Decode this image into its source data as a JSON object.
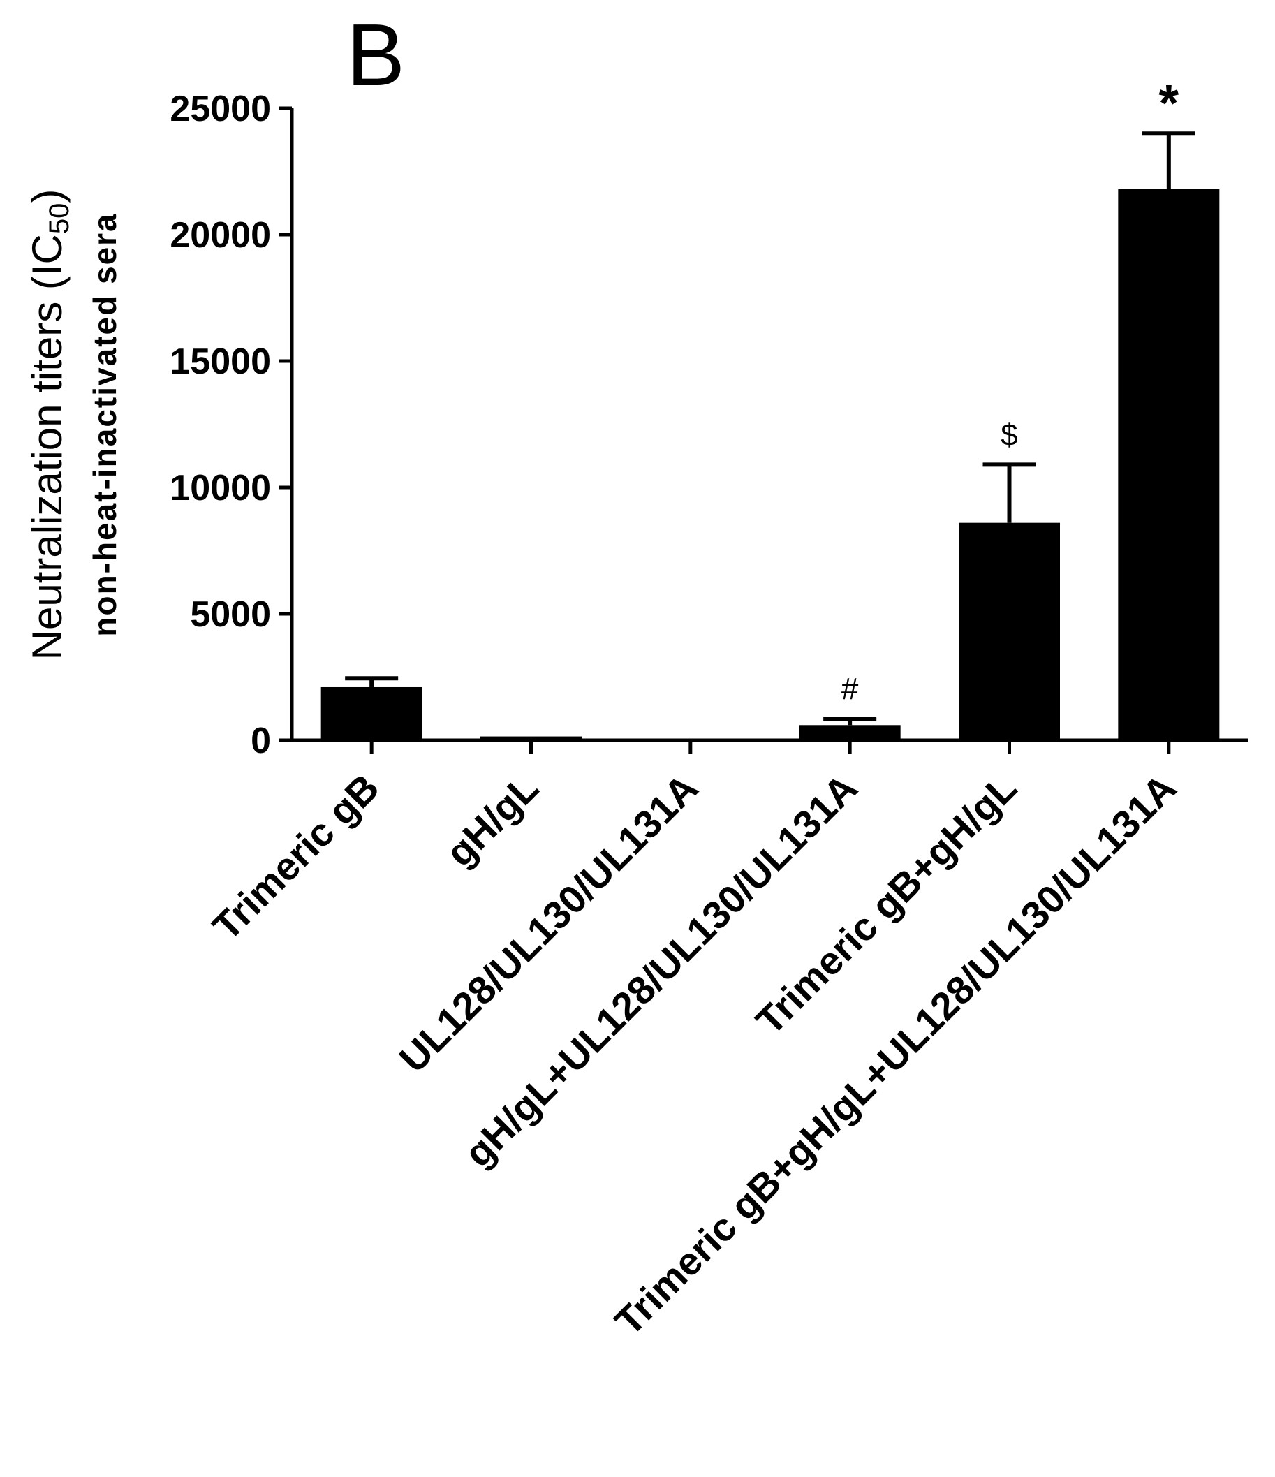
{
  "chart_data": {
    "type": "bar",
    "panel_label": "B",
    "title": "",
    "ylabel": "Neutralization titers (IC",
    "ylabel_subscript": "50",
    "ylabel_close": ")",
    "ylabel_sub": "non-heat-inactivated sera",
    "ylim": [
      0,
      25000
    ],
    "yticks": [
      "0",
      "5000",
      "10000",
      "15000",
      "20000",
      "25000"
    ],
    "categories": [
      "Trimeric gB",
      "gH/gL",
      "UL128/UL130/UL131A",
      "gH/gL+UL128/UL130/UL131A",
      "Trimeric gB+gH/gL",
      "Trimeric gB+gH/gL+UL128/UL130/UL131A"
    ],
    "values": [
      2100,
      150,
      0,
      600,
      8600,
      21800
    ],
    "errors": [
      350,
      0,
      0,
      250,
      2300,
      2200
    ],
    "annotations": [
      "",
      "",
      "",
      "#",
      "$",
      "*"
    ],
    "bar_color": "#000000",
    "grid": false,
    "legend": "none"
  }
}
